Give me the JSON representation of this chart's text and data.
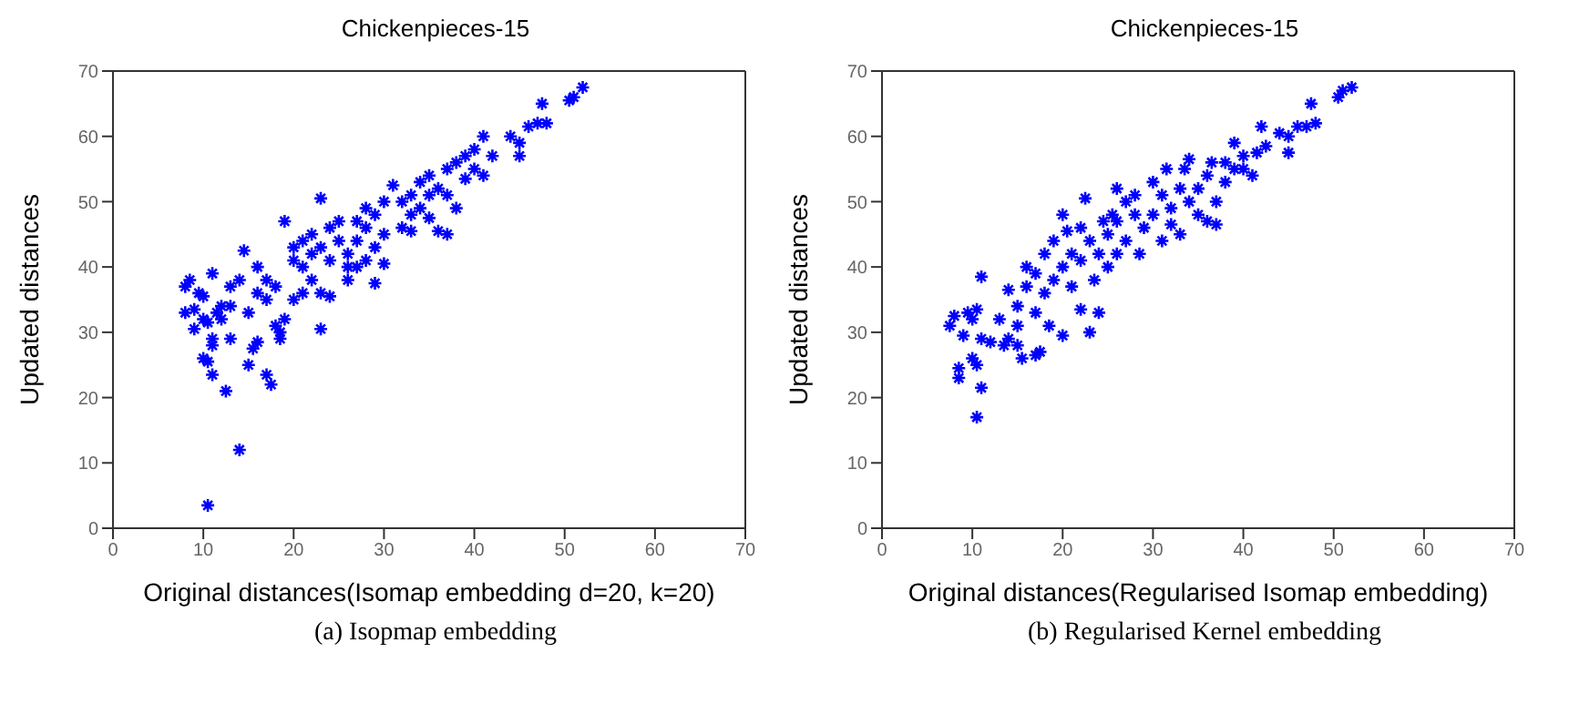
{
  "chart_data": [
    {
      "type": "scatter",
      "title": "Chickenpieces-15",
      "xlabel": "Original distances(Isomap embedding d=20, k=20)",
      "ylabel": "Updated distances",
      "annotations": [
        "(a) Isopmap embedding"
      ],
      "color": "#0000ff",
      "marker": "cross",
      "xlim": [
        0,
        70
      ],
      "ylim": [
        0,
        70
      ],
      "xticks": [
        0,
        10,
        20,
        30,
        40,
        50,
        60,
        70
      ],
      "yticks": [
        0,
        10,
        20,
        30,
        40,
        50,
        60,
        70
      ],
      "x": [
        10.5,
        14,
        12.5,
        11,
        15,
        17,
        17.5,
        10,
        10.5,
        11,
        11,
        13,
        15.5,
        16,
        18.5,
        23,
        29,
        8,
        8,
        8.5,
        9,
        9,
        9.5,
        10,
        10,
        10.5,
        11,
        12,
        12,
        11.5,
        13,
        13,
        14,
        15,
        14.5,
        16,
        17,
        18,
        18,
        18.5,
        19,
        17,
        16,
        19,
        20,
        20,
        21,
        21,
        22,
        22,
        22,
        23,
        23,
        24,
        24,
        25,
        25,
        23,
        21,
        20,
        24,
        26,
        26,
        27,
        27,
        28,
        28,
        29,
        30,
        30,
        29,
        30,
        31,
        32,
        32,
        33,
        33,
        34,
        34,
        35,
        35,
        35,
        36,
        36,
        37,
        37,
        37,
        38,
        39,
        39,
        40,
        40,
        41,
        41,
        42,
        44,
        45,
        45,
        46,
        47,
        47.5,
        48,
        50.5,
        51,
        52,
        38,
        26,
        27,
        28,
        33
      ],
      "values": [
        3.5,
        12,
        21,
        23.5,
        25,
        23.5,
        22,
        26,
        25.5,
        28,
        29,
        29,
        27.5,
        28.5,
        29,
        30.5,
        37.5,
        33,
        37,
        38,
        33.5,
        30.5,
        36,
        35.5,
        32,
        31.5,
        39,
        32,
        34,
        33,
        37,
        34,
        38,
        33,
        42.5,
        40,
        38,
        37,
        31,
        30,
        32,
        35,
        36,
        47,
        43,
        41,
        44,
        40,
        42,
        38,
        45,
        50.5,
        43,
        41,
        46,
        44,
        47,
        36,
        36,
        35,
        35.5,
        42,
        40,
        44,
        47,
        41,
        46,
        43,
        40.5,
        45,
        48,
        50,
        52.5,
        50,
        46,
        48,
        51,
        53,
        49,
        47.5,
        51,
        54,
        52,
        45.5,
        45,
        55,
        51,
        56,
        57,
        53.5,
        55,
        58,
        54,
        60,
        57,
        60,
        57,
        59,
        61.5,
        62,
        65,
        62,
        65.5,
        66,
        67.5,
        49,
        38,
        40,
        49,
        45.5
      ]
    },
    {
      "type": "scatter",
      "title": "Chickenpieces-15",
      "xlabel": "Original distances(Regularised Isomap embedding)",
      "ylabel": "Updated distances",
      "annotations": [
        "(b) Regularised Kernel embedding"
      ],
      "color": "#0000ff",
      "marker": "cross",
      "xlim": [
        0,
        70
      ],
      "ylim": [
        0,
        70
      ],
      "xticks": [
        0,
        10,
        20,
        30,
        40,
        50,
        60,
        70
      ],
      "yticks": [
        0,
        10,
        20,
        30,
        40,
        50,
        60,
        70
      ],
      "x": [
        10.5,
        11,
        8.5,
        8.5,
        10,
        10.5,
        7.5,
        8,
        9,
        9.5,
        10,
        10.5,
        11,
        11,
        12,
        13,
        13.5,
        14,
        15,
        15.5,
        17,
        17.5,
        14,
        15,
        15,
        16,
        16,
        17,
        17,
        18,
        18,
        18.5,
        19,
        19,
        20,
        20,
        20.5,
        21,
        21,
        22,
        22,
        22,
        22.5,
        23,
        23,
        23.5,
        24,
        24,
        24.5,
        25,
        25,
        25.5,
        26,
        26,
        27,
        27,
        28,
        28,
        28.5,
        29,
        30,
        30,
        31,
        31,
        32,
        32,
        33,
        33,
        33.5,
        34,
        34,
        35,
        35,
        36,
        36,
        36.5,
        37,
        37,
        38,
        38,
        39,
        39,
        40,
        40,
        41,
        41.5,
        42,
        42.5,
        44,
        45,
        45,
        46,
        47,
        47.5,
        48,
        50.5,
        51,
        52,
        20,
        26,
        31.5
      ],
      "values": [
        17,
        21.5,
        23,
        24.5,
        26,
        25,
        31,
        32.5,
        29.5,
        33,
        32,
        33.5,
        38.5,
        29,
        28.5,
        32,
        28,
        29,
        28,
        26,
        26.5,
        27,
        36.5,
        34,
        31,
        40,
        37,
        33,
        39,
        36,
        42,
        31,
        38,
        44,
        40,
        29.5,
        45.5,
        42,
        37,
        46,
        41,
        33.5,
        50.5,
        44,
        30,
        38,
        33,
        42,
        47,
        45,
        40,
        48,
        42,
        47,
        50,
        44,
        48,
        51,
        42,
        46,
        48,
        53,
        44,
        51,
        49,
        46.5,
        52,
        45,
        55,
        50,
        56.5,
        48,
        52,
        54,
        47,
        56,
        50,
        46.5,
        53,
        56,
        59,
        55,
        57,
        55,
        54,
        57.5,
        61.5,
        58.5,
        60.5,
        57.5,
        60,
        61.5,
        61.5,
        65,
        62,
        66,
        67,
        67.5,
        48,
        52,
        55
      ]
    }
  ]
}
